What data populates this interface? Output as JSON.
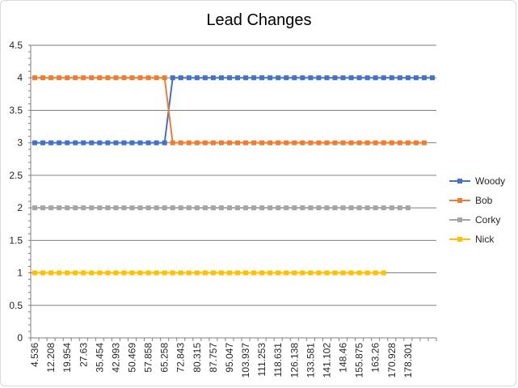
{
  "chart_data": {
    "type": "line",
    "title": "Lead Changes",
    "xlabel": "",
    "ylabel": "",
    "ylim": [
      0,
      4.5
    ],
    "y_ticks": [
      "0",
      "0.5",
      "1",
      "1.5",
      "2",
      "2.5",
      "3",
      "3.5",
      "4",
      "4.5"
    ],
    "x_tick_labels": [
      "4.536",
      "12.208",
      "19.954",
      "27.63",
      "35.454",
      "42.993",
      "50.469",
      "57.858",
      "65.258",
      "72.843",
      "80.315",
      "87.757",
      "95.047",
      "103.937",
      "111.253",
      "118.631",
      "126.138",
      "133.581",
      "141.102",
      "148.46",
      "155.875",
      "163.26",
      "170.928",
      "178.301"
    ],
    "grid": "horizontal",
    "legend_position": "right",
    "series": [
      {
        "name": "Woody",
        "color": "#4472C4",
        "values": [
          3,
          3,
          3,
          3,
          3,
          3,
          3,
          3,
          3,
          3,
          3,
          3,
          3,
          3,
          3,
          3,
          3,
          4,
          4,
          4,
          4,
          4,
          4,
          4,
          4,
          4,
          4,
          4,
          4,
          4,
          4,
          4,
          4,
          4,
          4,
          4,
          4,
          4,
          4,
          4,
          4,
          4,
          4,
          4,
          4,
          4,
          4,
          4,
          4,
          4
        ]
      },
      {
        "name": "Bob",
        "color": "#ED7D31",
        "values": [
          4,
          4,
          4,
          4,
          4,
          4,
          4,
          4,
          4,
          4,
          4,
          4,
          4,
          4,
          4,
          4,
          4,
          3,
          3,
          3,
          3,
          3,
          3,
          3,
          3,
          3,
          3,
          3,
          3,
          3,
          3,
          3,
          3,
          3,
          3,
          3,
          3,
          3,
          3,
          3,
          3,
          3,
          3,
          3,
          3,
          3,
          3,
          3,
          3
        ]
      },
      {
        "name": "Corky",
        "color": "#A5A5A5",
        "values": [
          2,
          2,
          2,
          2,
          2,
          2,
          2,
          2,
          2,
          2,
          2,
          2,
          2,
          2,
          2,
          2,
          2,
          2,
          2,
          2,
          2,
          2,
          2,
          2,
          2,
          2,
          2,
          2,
          2,
          2,
          2,
          2,
          2,
          2,
          2,
          2,
          2,
          2,
          2,
          2,
          2,
          2,
          2,
          2,
          2,
          2,
          2
        ]
      },
      {
        "name": "Nick",
        "color": "#FFC000",
        "values": [
          1,
          1,
          1,
          1,
          1,
          1,
          1,
          1,
          1,
          1,
          1,
          1,
          1,
          1,
          1,
          1,
          1,
          1,
          1,
          1,
          1,
          1,
          1,
          1,
          1,
          1,
          1,
          1,
          1,
          1,
          1,
          1,
          1,
          1,
          1,
          1,
          1,
          1,
          1,
          1,
          1,
          1,
          1,
          1
        ]
      }
    ]
  }
}
